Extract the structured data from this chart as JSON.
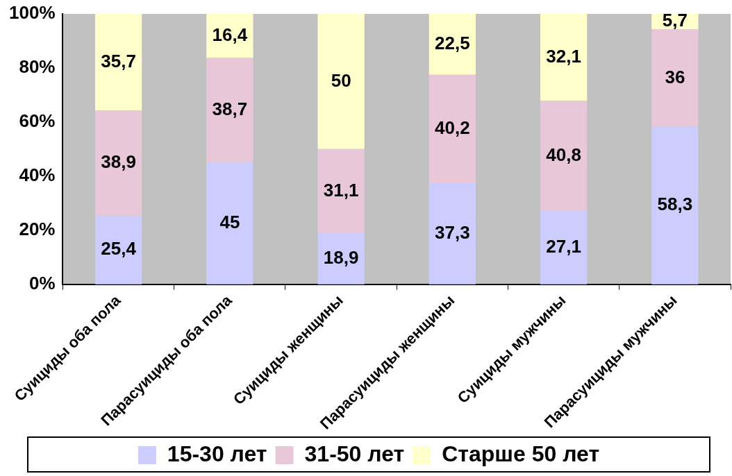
{
  "chart_data": {
    "type": "bar",
    "stacked": true,
    "categories": [
      "Суициды оба пола",
      "Парасуициды оба пола",
      "Суициды женщины",
      "Парасуициды женщины",
      "Суициды мужчины",
      "Парасуициды мужчины"
    ],
    "series": [
      {
        "name": "15-30 лет",
        "color": "#ccccff",
        "values": [
          25.4,
          45,
          18.9,
          37.3,
          27.1,
          58.3
        ],
        "value_labels": [
          "25,4",
          "45",
          "18,9",
          "37,3",
          "27,1",
          "58,3"
        ]
      },
      {
        "name": "31-50 лет",
        "color": "#e8c8d8",
        "values": [
          38.9,
          38.7,
          31.1,
          40.2,
          40.8,
          36
        ],
        "value_labels": [
          "38,9",
          "38,7",
          "31,1",
          "40,2",
          "40,8",
          "36"
        ]
      },
      {
        "name": "Старше 50 лет",
        "color": "#ffffcc",
        "values": [
          35.7,
          16.4,
          50,
          22.5,
          32.1,
          5.7
        ],
        "value_labels": [
          "35,7",
          "16,4",
          "50",
          "22,5",
          "32,1",
          "5,7"
        ]
      }
    ],
    "ylim": [
      0,
      100
    ],
    "yticks": [
      {
        "value": 0,
        "label": "0%"
      },
      {
        "value": 20,
        "label": "20%"
      },
      {
        "value": 40,
        "label": "40%"
      },
      {
        "value": 60,
        "label": "60%"
      },
      {
        "value": 80,
        "label": "80%"
      },
      {
        "value": 100,
        "label": "100%"
      }
    ],
    "grid": false,
    "legend": "bottom"
  }
}
